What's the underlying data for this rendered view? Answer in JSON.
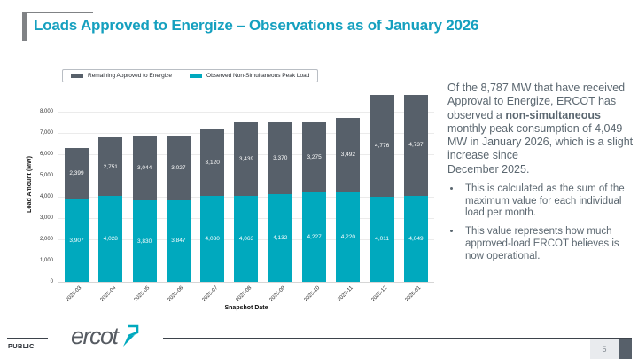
{
  "slide": {
    "title": "Loads Approved to Energize – Observations as of January 2026"
  },
  "chart_data": {
    "type": "bar",
    "stacked": true,
    "title": "",
    "xlabel": "Snapshot Date",
    "ylabel": "Load Amount (MW)",
    "ylim": [
      0,
      8000
    ],
    "ytick_step": 1000,
    "grid": true,
    "legend_position": "top-left",
    "categories": [
      "2025-03",
      "2025-04",
      "2025-05",
      "2025-06",
      "2025-07",
      "2025-08",
      "2025-09",
      "2025-10",
      "2025-11",
      "2025-12",
      "2026-01"
    ],
    "series": [
      {
        "name": "Observed Non-Simultaneous Peak Load",
        "color": "#00a9be",
        "values": [
          3907,
          4028,
          3830,
          3847,
          4030,
          4063,
          4132,
          4227,
          4220,
          4011,
          4049
        ]
      },
      {
        "name": "Remaining Approved to Energize",
        "color": "#57606a",
        "values": [
          2399,
          2751,
          3044,
          3027,
          3120,
          3439,
          3370,
          3275,
          3492,
          4776,
          4737
        ]
      }
    ]
  },
  "commentary": {
    "paragraph_start": "Of the 8,787 MW that have received Approval to Energize, ERCOT has observed a ",
    "paragraph_bold": "non-simultaneous",
    "paragraph_end": " monthly peak consumption of 4,049 MW in January 2026, which is a slight increase since\nDecember 2025.",
    "bullets": [
      "This is calculated as the sum of the maximum value for each individual load per month.",
      "This value represents how much approved-load ERCOT believes is now operational."
    ]
  },
  "footer": {
    "classification": "PUBLIC",
    "logo_text": "ercot",
    "page_number": "5"
  },
  "colors": {
    "title_teal": "#15a0bf",
    "bar_teal": "#00a9be",
    "bar_gray": "#57606a",
    "text_gray": "#5b6770",
    "accent_gray": "#808285"
  }
}
